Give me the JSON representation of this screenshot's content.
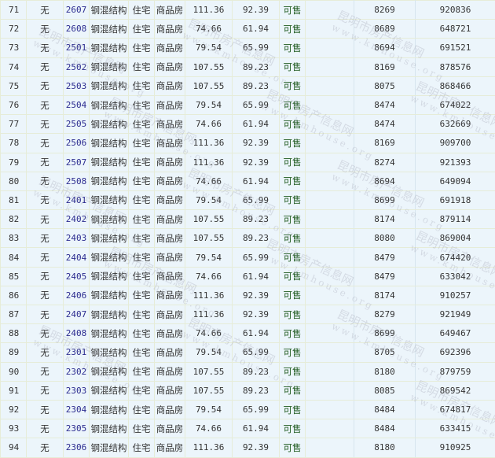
{
  "columns": [
    "index",
    "mortgage",
    "room",
    "structure",
    "usage",
    "type",
    "build_area",
    "inner_area",
    "status",
    "blank",
    "unit_price",
    "total_price"
  ],
  "watermark": {
    "cn": "昆明市房产信息网",
    "url": "www.kmhouse.org"
  },
  "colors": {
    "background": "#ecf5fb",
    "room_link": "#2b2b8f",
    "status": "#1f5a1f"
  },
  "rows": [
    [
      "71",
      "无",
      "2607",
      "钢混结构",
      "住宅",
      "商品房",
      "111.36",
      "92.39",
      "可售",
      "",
      "8269",
      "920836"
    ],
    [
      "72",
      "无",
      "2608",
      "钢混结构",
      "住宅",
      "商品房",
      "74.66",
      "61.94",
      "可售",
      "",
      "8689",
      "648721"
    ],
    [
      "73",
      "无",
      "2501",
      "钢混结构",
      "住宅",
      "商品房",
      "79.54",
      "65.99",
      "可售",
      "",
      "8694",
      "691521"
    ],
    [
      "74",
      "无",
      "2502",
      "钢混结构",
      "住宅",
      "商品房",
      "107.55",
      "89.23",
      "可售",
      "",
      "8169",
      "878576"
    ],
    [
      "75",
      "无",
      "2503",
      "钢混结构",
      "住宅",
      "商品房",
      "107.55",
      "89.23",
      "可售",
      "",
      "8075",
      "868466"
    ],
    [
      "76",
      "无",
      "2504",
      "钢混结构",
      "住宅",
      "商品房",
      "79.54",
      "65.99",
      "可售",
      "",
      "8474",
      "674022"
    ],
    [
      "77",
      "无",
      "2505",
      "钢混结构",
      "住宅",
      "商品房",
      "74.66",
      "61.94",
      "可售",
      "",
      "8474",
      "632669"
    ],
    [
      "78",
      "无",
      "2506",
      "钢混结构",
      "住宅",
      "商品房",
      "111.36",
      "92.39",
      "可售",
      "",
      "8169",
      "909700"
    ],
    [
      "79",
      "无",
      "2507",
      "钢混结构",
      "住宅",
      "商品房",
      "111.36",
      "92.39",
      "可售",
      "",
      "8274",
      "921393"
    ],
    [
      "80",
      "无",
      "2508",
      "钢混结构",
      "住宅",
      "商品房",
      "74.66",
      "61.94",
      "可售",
      "",
      "8694",
      "649094"
    ],
    [
      "81",
      "无",
      "2401",
      "钢混结构",
      "住宅",
      "商品房",
      "79.54",
      "65.99",
      "可售",
      "",
      "8699",
      "691918"
    ],
    [
      "82",
      "无",
      "2402",
      "钢混结构",
      "住宅",
      "商品房",
      "107.55",
      "89.23",
      "可售",
      "",
      "8174",
      "879114"
    ],
    [
      "83",
      "无",
      "2403",
      "钢混结构",
      "住宅",
      "商品房",
      "107.55",
      "89.23",
      "可售",
      "",
      "8080",
      "869004"
    ],
    [
      "84",
      "无",
      "2404",
      "钢混结构",
      "住宅",
      "商品房",
      "79.54",
      "65.99",
      "可售",
      "",
      "8479",
      "674420"
    ],
    [
      "85",
      "无",
      "2405",
      "钢混结构",
      "住宅",
      "商品房",
      "74.66",
      "61.94",
      "可售",
      "",
      "8479",
      "633042"
    ],
    [
      "86",
      "无",
      "2406",
      "钢混结构",
      "住宅",
      "商品房",
      "111.36",
      "92.39",
      "可售",
      "",
      "8174",
      "910257"
    ],
    [
      "87",
      "无",
      "2407",
      "钢混结构",
      "住宅",
      "商品房",
      "111.36",
      "92.39",
      "可售",
      "",
      "8279",
      "921949"
    ],
    [
      "88",
      "无",
      "2408",
      "钢混结构",
      "住宅",
      "商品房",
      "74.66",
      "61.94",
      "可售",
      "",
      "8699",
      "649467"
    ],
    [
      "89",
      "无",
      "2301",
      "钢混结构",
      "住宅",
      "商品房",
      "79.54",
      "65.99",
      "可售",
      "",
      "8705",
      "692396"
    ],
    [
      "90",
      "无",
      "2302",
      "钢混结构",
      "住宅",
      "商品房",
      "107.55",
      "89.23",
      "可售",
      "",
      "8180",
      "879759"
    ],
    [
      "91",
      "无",
      "2303",
      "钢混结构",
      "住宅",
      "商品房",
      "107.55",
      "89.23",
      "可售",
      "",
      "8085",
      "869542"
    ],
    [
      "92",
      "无",
      "2304",
      "钢混结构",
      "住宅",
      "商品房",
      "79.54",
      "65.99",
      "可售",
      "",
      "8484",
      "674817"
    ],
    [
      "93",
      "无",
      "2305",
      "钢混结构",
      "住宅",
      "商品房",
      "74.66",
      "61.94",
      "可售",
      "",
      "8484",
      "633415"
    ],
    [
      "94",
      "无",
      "2306",
      "钢混结构",
      "住宅",
      "商品房",
      "111.36",
      "92.39",
      "可售",
      "",
      "8180",
      "910925"
    ]
  ]
}
